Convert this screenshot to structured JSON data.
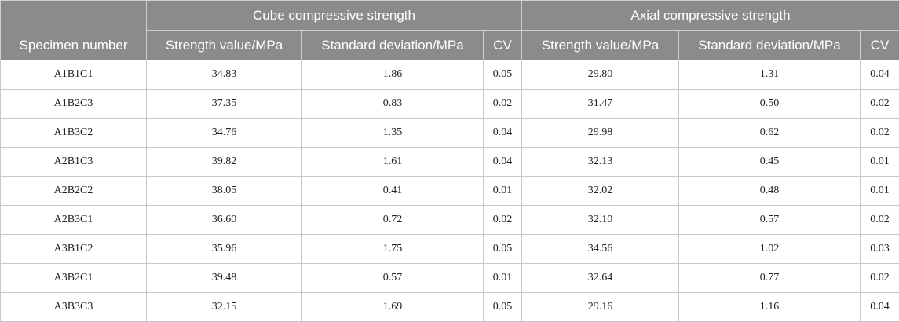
{
  "header": {
    "corner": "Specimen number",
    "groups": [
      "Cube compressive strength",
      "Axial compressive strength"
    ],
    "columns": [
      "Strength value/MPa",
      "Standard deviation/MPa",
      "CV",
      "Strength value/MPa",
      "Standard deviation/MPa",
      "CV"
    ]
  },
  "table": {
    "rows": [
      [
        "A1B1C1",
        "34.83",
        "1.86",
        "0.05",
        "29.80",
        "1.31",
        "0.04"
      ],
      [
        "A1B2C3",
        "37.35",
        "0.83",
        "0.02",
        "31.47",
        "0.50",
        "0.02"
      ],
      [
        "A1B3C2",
        "34.76",
        "1.35",
        "0.04",
        "29.98",
        "0.62",
        "0.02"
      ],
      [
        "A2B1C3",
        "39.82",
        "1.61",
        "0.04",
        "32.13",
        "0.45",
        "0.01"
      ],
      [
        "A2B2C2",
        "38.05",
        "0.41",
        "0.01",
        "32.02",
        "0.48",
        "0.01"
      ],
      [
        "A2B3C1",
        "36.60",
        "0.72",
        "0.02",
        "32.10",
        "0.57",
        "0.02"
      ],
      [
        "A3B1C2",
        "35.96",
        "1.75",
        "0.05",
        "34.56",
        "1.02",
        "0.03"
      ],
      [
        "A3B2C1",
        "39.48",
        "0.57",
        "0.01",
        "32.64",
        "0.77",
        "0.02"
      ],
      [
        "A3B3C3",
        "32.15",
        "1.69",
        "0.05",
        "29.16",
        "1.16",
        "0.04"
      ]
    ]
  }
}
